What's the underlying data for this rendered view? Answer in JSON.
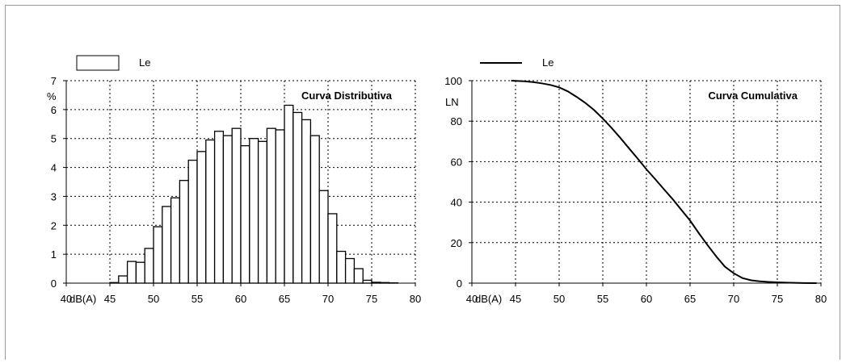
{
  "chart_data": [
    {
      "type": "bar",
      "title": "Curva Distributiva",
      "xlabel": "dB(A)",
      "ylabel": "%",
      "legend": {
        "label": "Le",
        "placement": "top-left"
      },
      "xlim": [
        40,
        80
      ],
      "ylim": [
        0,
        7
      ],
      "grid": true,
      "x_ticks": [
        "40",
        "45",
        "50",
        "55",
        "60",
        "65",
        "70",
        "75",
        "80"
      ],
      "y_ticks": [
        "0",
        "1",
        "2",
        "3",
        "4",
        "5",
        "6",
        "7"
      ],
      "bin_width": 1,
      "bins": [
        {
          "x": 45,
          "value": 0.02
        },
        {
          "x": 46,
          "value": 0.25
        },
        {
          "x": 47,
          "value": 0.75
        },
        {
          "x": 48,
          "value": 0.72
        },
        {
          "x": 49,
          "value": 1.2
        },
        {
          "x": 50,
          "value": 1.95
        },
        {
          "x": 51,
          "value": 2.65
        },
        {
          "x": 52,
          "value": 2.95
        },
        {
          "x": 53,
          "value": 3.55
        },
        {
          "x": 54,
          "value": 4.25
        },
        {
          "x": 55,
          "value": 4.55
        },
        {
          "x": 56,
          "value": 4.95
        },
        {
          "x": 57,
          "value": 5.25
        },
        {
          "x": 58,
          "value": 5.1
        },
        {
          "x": 59,
          "value": 5.35
        },
        {
          "x": 60,
          "value": 4.75
        },
        {
          "x": 61,
          "value": 5.0
        },
        {
          "x": 62,
          "value": 4.9
        },
        {
          "x": 63,
          "value": 5.35
        },
        {
          "x": 64,
          "value": 5.3
        },
        {
          "x": 65,
          "value": 6.15
        },
        {
          "x": 66,
          "value": 5.9
        },
        {
          "x": 67,
          "value": 5.65
        },
        {
          "x": 68,
          "value": 5.1
        },
        {
          "x": 69,
          "value": 3.2
        },
        {
          "x": 70,
          "value": 2.4
        },
        {
          "x": 71,
          "value": 1.1
        },
        {
          "x": 72,
          "value": 0.85
        },
        {
          "x": 73,
          "value": 0.5
        },
        {
          "x": 74,
          "value": 0.1
        },
        {
          "x": 75,
          "value": 0.03
        },
        {
          "x": 76,
          "value": 0.02
        },
        {
          "x": 77,
          "value": 0.01
        }
      ]
    },
    {
      "type": "line",
      "title": "Curva Cumulativa",
      "xlabel": "dB(A)",
      "ylabel": "LN",
      "legend": {
        "label": "Le",
        "placement": "top-left"
      },
      "xlim": [
        40,
        80
      ],
      "ylim": [
        0,
        100
      ],
      "grid": true,
      "x_ticks": [
        "40",
        "45",
        "50",
        "55",
        "60",
        "65",
        "70",
        "75",
        "80"
      ],
      "y_ticks": [
        "0",
        "20",
        "40",
        "60",
        "80",
        "100"
      ],
      "series": [
        {
          "x": [
            44.5,
            46,
            47,
            48,
            49,
            50,
            51,
            52,
            53,
            54,
            55,
            56,
            57,
            58,
            59,
            60,
            61,
            62,
            63,
            64,
            65,
            66,
            67,
            68,
            69,
            70,
            71,
            72,
            73,
            74,
            75,
            76,
            77,
            78,
            79.5
          ],
          "y": [
            100,
            99.7,
            99.3,
            98.7,
            97.9,
            96.7,
            94.7,
            92.0,
            89.0,
            85.5,
            81.3,
            76.7,
            71.8,
            66.6,
            61.5,
            56.2,
            51.4,
            46.4,
            41.5,
            36.2,
            30.9,
            24.7,
            18.8,
            13.2,
            8.1,
            4.9,
            2.5,
            1.4,
            0.9,
            0.6,
            0.4,
            0.25,
            0.15,
            0.05,
            0
          ]
        }
      ]
    }
  ]
}
